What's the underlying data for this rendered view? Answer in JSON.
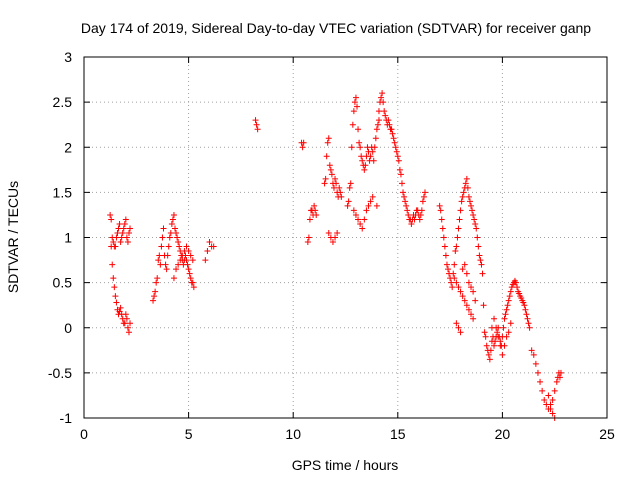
{
  "chart_data": {
    "type": "scatter",
    "title": "Day 174 of 2019, Sidereal Day-to-day VTEC variation (SDTVAR) for receiver ganp",
    "xlabel": "GPS time / hours",
    "ylabel": "SDTVAR / TECUs",
    "xlim": [
      0,
      25
    ],
    "ylim": [
      -1,
      3
    ],
    "x_ticks": [
      0,
      5,
      10,
      15,
      20,
      25
    ],
    "y_ticks": [
      -1,
      -0.5,
      0,
      0.5,
      1,
      1.5,
      2,
      2.5,
      3
    ],
    "x_tick_labels": [
      "0",
      "5",
      "10",
      "15",
      "20",
      "25"
    ],
    "y_tick_labels": [
      "-1",
      "-0.5",
      "0",
      "0.5",
      "1",
      "1.5",
      "2",
      "2.5",
      "3"
    ],
    "grid": true,
    "marker": "plus",
    "color": "#ff0000",
    "series": [
      {
        "name": "SDTVAR",
        "x": [
          1.25,
          1.3,
          1.35,
          1.4,
          1.45,
          1.5,
          1.55,
          1.6,
          1.65,
          1.7,
          1.75,
          1.8,
          1.85,
          1.9,
          1.95,
          2.0,
          2.05,
          2.1,
          2.15,
          2.2,
          1.3,
          1.35,
          1.4,
          1.45,
          1.5,
          1.55,
          1.6,
          1.65,
          1.7,
          1.75,
          1.8,
          1.85,
          1.9,
          1.95,
          2.0,
          2.05,
          2.1,
          2.15,
          2.2,
          3.3,
          3.35,
          3.4,
          3.45,
          3.5,
          3.55,
          3.6,
          3.65,
          3.7,
          3.75,
          3.8,
          3.85,
          3.9,
          3.95,
          4.0,
          4.05,
          4.1,
          4.15,
          4.2,
          4.25,
          4.3,
          4.35,
          4.4,
          4.45,
          4.5,
          4.55,
          4.6,
          4.65,
          4.7,
          4.75,
          4.8,
          4.85,
          4.9,
          4.95,
          5.0,
          5.05,
          5.1,
          5.15,
          5.2,
          5.25,
          4.3,
          4.4,
          4.5,
          4.6,
          4.7,
          4.8,
          4.9,
          5.0,
          5.1,
          5.2,
          5.8,
          5.9,
          6.0,
          6.1,
          6.2,
          8.2,
          8.25,
          8.3,
          10.4,
          10.45,
          10.5,
          10.7,
          10.75,
          10.8,
          10.85,
          10.9,
          10.95,
          11.0,
          11.05,
          11.1,
          11.5,
          11.55,
          11.6,
          11.65,
          11.7,
          11.75,
          11.8,
          11.85,
          11.9,
          11.95,
          12.0,
          12.05,
          12.1,
          12.15,
          12.2,
          12.25,
          12.3,
          11.7,
          11.8,
          11.9,
          12.0,
          12.1,
          12.6,
          12.65,
          12.7,
          12.75,
          12.8,
          12.85,
          12.9,
          12.95,
          13.0,
          13.05,
          13.1,
          13.15,
          13.2,
          13.25,
          13.3,
          13.35,
          13.4,
          13.45,
          13.5,
          13.55,
          13.6,
          13.65,
          13.7,
          13.75,
          13.8,
          13.85,
          13.9,
          13.95,
          14.0,
          14.05,
          14.1,
          12.9,
          13.0,
          13.1,
          13.2,
          13.3,
          13.4,
          13.5,
          13.6,
          13.7,
          13.8,
          14.0,
          14.1,
          14.15,
          14.2,
          14.25,
          14.3,
          14.35,
          14.4,
          14.45,
          14.5,
          14.55,
          14.6,
          14.65,
          14.7,
          14.75,
          14.8,
          14.85,
          14.9,
          14.95,
          15.0,
          15.05,
          15.1,
          15.15,
          15.2,
          15.25,
          15.3,
          15.35,
          15.4,
          15.45,
          15.5,
          15.55,
          15.6,
          15.65,
          15.7,
          15.75,
          15.8,
          15.85,
          15.9,
          15.95,
          16.0,
          16.05,
          16.1,
          16.15,
          16.2,
          16.25,
          16.3,
          17.0,
          17.05,
          17.1,
          17.15,
          17.2,
          17.25,
          17.3,
          17.35,
          17.4,
          17.45,
          17.5,
          17.55,
          17.6,
          17.65,
          17.7,
          17.75,
          17.8,
          17.85,
          17.9,
          17.95,
          18.0,
          18.05,
          18.1,
          18.15,
          18.2,
          18.25,
          18.3,
          18.35,
          18.4,
          18.45,
          18.5,
          18.55,
          18.6,
          18.65,
          18.7,
          18.75,
          18.8,
          18.85,
          18.9,
          18.95,
          19.0,
          19.05,
          17.7,
          17.8,
          17.9,
          18.0,
          18.1,
          18.2,
          18.3,
          18.4,
          18.5,
          18.6,
          17.8,
          17.9,
          18.0,
          18.1,
          18.2,
          18.3,
          18.4,
          18.5,
          18.6,
          18.7,
          19.1,
          19.15,
          19.2,
          19.25,
          19.3,
          19.35,
          19.4,
          19.45,
          19.5,
          19.55,
          19.6,
          19.65,
          19.7,
          19.75,
          19.8,
          19.85,
          19.9,
          19.95,
          20.0,
          20.05,
          20.1,
          20.15,
          20.2,
          20.25,
          20.3,
          20.35,
          20.4,
          20.45,
          20.5,
          20.55,
          20.6,
          20.65,
          20.7,
          20.75,
          20.8,
          20.85,
          20.9,
          20.95,
          21.0,
          21.05,
          21.1,
          21.15,
          21.2,
          21.25,
          21.3,
          19.5,
          19.6,
          19.7,
          19.8,
          19.9,
          20.0,
          20.1,
          20.2,
          20.3,
          20.4,
          21.4,
          21.5,
          21.6,
          21.7,
          21.8,
          21.9,
          22.0,
          22.1,
          22.2,
          22.3,
          22.4,
          22.5,
          22.6,
          22.65,
          22.7,
          22.75,
          22.8,
          22.2,
          22.3,
          22.4,
          22.5
        ],
        "y": [
          1.25,
          1.2,
          1.0,
          0.95,
          0.9,
          0.9,
          1.0,
          1.05,
          1.1,
          1.15,
          0.95,
          1.0,
          1.05,
          1.1,
          1.15,
          1.2,
          1.0,
          0.95,
          1.05,
          1.1,
          0.9,
          0.7,
          0.55,
          0.45,
          0.35,
          0.28,
          0.2,
          0.15,
          0.18,
          0.22,
          0.15,
          0.1,
          0.05,
          0.05,
          0.15,
          0.1,
          0.0,
          -0.05,
          0.05,
          0.3,
          0.35,
          0.4,
          0.5,
          0.55,
          0.75,
          0.8,
          0.7,
          0.9,
          1.0,
          1.1,
          0.8,
          0.7,
          0.65,
          0.8,
          0.9,
          1.0,
          1.05,
          1.15,
          1.2,
          1.25,
          1.1,
          1.05,
          1.0,
          0.95,
          0.9,
          0.85,
          0.8,
          0.75,
          0.7,
          0.75,
          0.8,
          0.75,
          0.7,
          0.65,
          0.6,
          0.55,
          0.5,
          0.5,
          0.45,
          0.55,
          0.65,
          0.7,
          0.75,
          0.8,
          0.85,
          0.9,
          0.85,
          0.8,
          0.75,
          0.75,
          0.85,
          0.95,
          0.9,
          0.9,
          2.3,
          2.25,
          2.2,
          2.05,
          2.0,
          2.05,
          0.95,
          1.0,
          1.2,
          1.3,
          1.3,
          1.25,
          1.35,
          1.3,
          1.25,
          1.6,
          1.65,
          1.9,
          2.05,
          2.1,
          1.8,
          1.75,
          1.7,
          1.6,
          1.55,
          1.65,
          1.6,
          1.5,
          1.45,
          1.55,
          1.5,
          1.45,
          1.05,
          1.0,
          0.95,
          1.0,
          1.05,
          1.35,
          1.4,
          1.55,
          1.6,
          2.0,
          2.25,
          2.4,
          2.5,
          2.55,
          2.45,
          2.2,
          2.05,
          2.0,
          1.9,
          1.85,
          1.8,
          1.75,
          1.8,
          1.9,
          2.0,
          1.95,
          1.85,
          1.9,
          2.0,
          1.95,
          1.85,
          2.0,
          2.1,
          2.2,
          2.25,
          2.3,
          1.3,
          1.25,
          1.2,
          1.15,
          1.1,
          1.2,
          1.3,
          1.35,
          1.4,
          1.45,
          1.35,
          2.4,
          2.5,
          2.55,
          2.6,
          2.5,
          2.4,
          2.35,
          2.3,
          2.25,
          2.3,
          2.25,
          2.2,
          2.2,
          2.15,
          2.1,
          2.05,
          2.0,
          1.95,
          1.9,
          1.85,
          1.75,
          1.7,
          1.6,
          1.5,
          1.45,
          1.4,
          1.35,
          1.3,
          1.25,
          1.2,
          1.2,
          1.15,
          1.2,
          1.25,
          1.2,
          1.25,
          1.3,
          1.3,
          1.25,
          1.2,
          1.25,
          1.3,
          1.4,
          1.45,
          1.5,
          1.35,
          1.3,
          1.2,
          1.1,
          1.0,
          0.9,
          0.8,
          0.7,
          0.65,
          0.6,
          0.55,
          0.5,
          0.45,
          0.6,
          0.7,
          0.85,
          0.9,
          1.0,
          1.1,
          1.2,
          1.3,
          1.4,
          1.45,
          1.5,
          1.55,
          1.6,
          1.65,
          1.55,
          1.45,
          1.4,
          1.35,
          1.3,
          1.25,
          1.2,
          1.15,
          1.1,
          1.0,
          0.9,
          0.8,
          0.75,
          0.7,
          0.6,
          0.55,
          0.5,
          0.45,
          0.4,
          0.35,
          0.3,
          0.25,
          0.2,
          0.15,
          0.1,
          0.05,
          0.0,
          -0.05,
          0.65,
          0.7,
          0.6,
          0.5,
          0.45,
          0.4,
          0.3,
          0.25,
          -0.05,
          -0.1,
          -0.2,
          -0.25,
          -0.3,
          -0.35,
          -0.25,
          -0.15,
          -0.1,
          -0.2,
          -0.15,
          -0.1,
          -0.05,
          0.0,
          -0.1,
          -0.15,
          -0.2,
          -0.1,
          0.0,
          0.1,
          0.15,
          0.2,
          0.25,
          0.3,
          0.35,
          0.4,
          0.45,
          0.48,
          0.5,
          0.52,
          0.5,
          0.45,
          0.4,
          0.38,
          0.35,
          0.33,
          0.3,
          0.28,
          0.25,
          0.2,
          0.15,
          0.1,
          0.05,
          0.0,
          0.0,
          0.1,
          0.0,
          -0.1,
          -0.2,
          -0.3,
          -0.2,
          -0.1,
          -0.05,
          0.05,
          -0.25,
          -0.3,
          -0.4,
          -0.5,
          -0.6,
          -0.7,
          -0.8,
          -0.85,
          -0.9,
          -0.85,
          -0.8,
          -0.7,
          -0.6,
          -0.55,
          -0.5,
          -0.55,
          -0.5,
          -0.75,
          -0.9,
          -0.95,
          -1.0
        ]
      }
    ]
  }
}
